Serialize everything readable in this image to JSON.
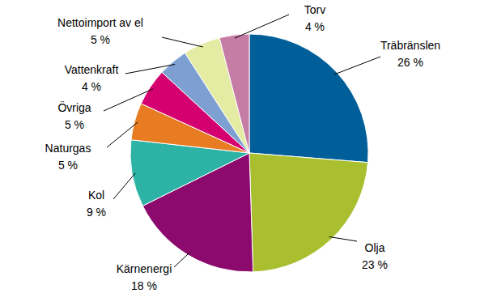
{
  "chart_data": {
    "type": "pie",
    "categories": [
      "Träbränslen",
      "Olja",
      "Kärnenergi",
      "Kol",
      "Naturgas",
      "Övriga",
      "Vattenkraft",
      "Nettoimport av el",
      "Torv"
    ],
    "values": [
      26,
      23,
      18,
      9,
      5,
      5,
      4,
      5,
      4
    ],
    "value_labels": [
      "26 %",
      "23 %",
      "18 %",
      "9 %",
      "5 %",
      "5 %",
      "4 %",
      "5 %",
      "4 %"
    ],
    "colors": [
      "#005f99",
      "#a9bf2f",
      "#8c0a6e",
      "#2db3a6",
      "#e87c22",
      "#d5006f",
      "#7d9fd2",
      "#e4eba2",
      "#c57da6"
    ],
    "data_labels": true
  }
}
